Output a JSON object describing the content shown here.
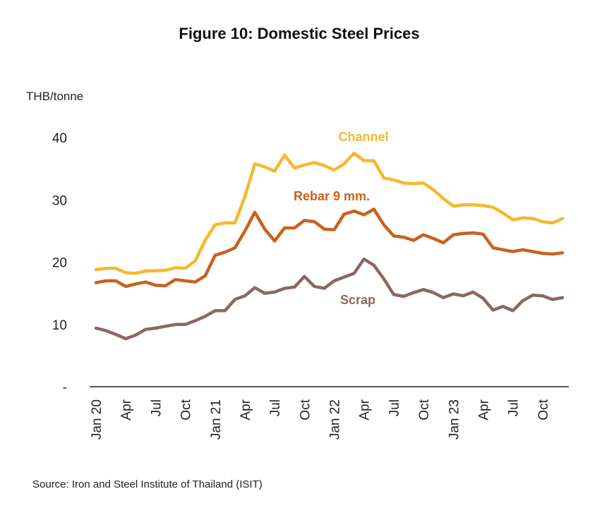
{
  "chart_data": {
    "type": "line",
    "title": "Figure 10: Domestic Steel Prices",
    "ylabel": "THB/tonne",
    "source": "Source: Iron and Steel Institute of Thailand (ISIT)",
    "ylim": [
      0,
      40
    ],
    "yticks": [
      {
        "value": 0,
        "label": "-"
      },
      {
        "value": 10,
        "label": "10"
      },
      {
        "value": 20,
        "label": "20"
      },
      {
        "value": 30,
        "label": "30"
      },
      {
        "value": 40,
        "label": "40"
      }
    ],
    "x": [
      "Jan 20",
      "Feb 20",
      "Mar 20",
      "Apr 20",
      "May 20",
      "Jun 20",
      "Jul 20",
      "Aug 20",
      "Sep 20",
      "Oct 20",
      "Nov 20",
      "Dec 20",
      "Jan 21",
      "Feb 21",
      "Mar 21",
      "Apr 21",
      "May 21",
      "Jun 21",
      "Jul 21",
      "Aug 21",
      "Sep 21",
      "Oct 21",
      "Nov 21",
      "Dec 21",
      "Jan 22",
      "Feb 22",
      "Mar 22",
      "Apr 22",
      "May 22",
      "Jun 22",
      "Jul 22",
      "Aug 22",
      "Sep 22",
      "Oct 22",
      "Nov 22",
      "Dec 22",
      "Jan 23",
      "Feb 23",
      "Mar 23",
      "Apr 23",
      "May 23",
      "Jun 23",
      "Jul 23",
      "Aug 23",
      "Sep 23",
      "Oct 23",
      "Nov 23",
      "Dec 23"
    ],
    "xticks": [
      {
        "index": 0,
        "label": "Jan 20"
      },
      {
        "index": 3,
        "label": "Apr"
      },
      {
        "index": 6,
        "label": "Jul"
      },
      {
        "index": 9,
        "label": "Oct"
      },
      {
        "index": 12,
        "label": "Jan 21"
      },
      {
        "index": 15,
        "label": "Apr"
      },
      {
        "index": 18,
        "label": "Jul"
      },
      {
        "index": 21,
        "label": "Oct"
      },
      {
        "index": 24,
        "label": "Jan 22"
      },
      {
        "index": 27,
        "label": "Apr"
      },
      {
        "index": 30,
        "label": "Jul"
      },
      {
        "index": 33,
        "label": "Oct"
      },
      {
        "index": 36,
        "label": "Jan 23"
      },
      {
        "index": 39,
        "label": "Apr"
      },
      {
        "index": 42,
        "label": "Jul"
      },
      {
        "index": 45,
        "label": "Oct"
      }
    ],
    "series": [
      {
        "name": "Channel",
        "color": "#F5B82E",
        "values": [
          18.8,
          19.0,
          19.0,
          18.3,
          18.2,
          18.6,
          18.6,
          18.7,
          19.1,
          19.0,
          20.2,
          23.5,
          26.0,
          26.3,
          26.3,
          30.5,
          35.8,
          35.3,
          34.6,
          37.2,
          35.1,
          35.6,
          36.0,
          35.5,
          34.8,
          35.8,
          37.5,
          36.3,
          36.3,
          33.5,
          33.2,
          32.7,
          32.6,
          32.7,
          31.6,
          30.2,
          29.0,
          29.2,
          29.2,
          29.1,
          28.8,
          27.9,
          26.8,
          27.1,
          27.0,
          26.5,
          26.3,
          27.0
        ]
      },
      {
        "name": "Rebar 9 mm.",
        "color": "#C8621E",
        "values": [
          16.7,
          17.0,
          17.0,
          16.1,
          16.5,
          16.8,
          16.3,
          16.2,
          17.2,
          17.0,
          16.8,
          17.8,
          21.1,
          21.6,
          22.3,
          25.0,
          28.0,
          25.3,
          23.4,
          25.5,
          25.5,
          26.7,
          26.5,
          25.3,
          25.2,
          27.7,
          28.2,
          27.6,
          28.5,
          26.0,
          24.2,
          24.0,
          23.5,
          24.4,
          23.8,
          23.1,
          24.4,
          24.6,
          24.7,
          24.5,
          22.3,
          22.0,
          21.7,
          22.0,
          21.7,
          21.4,
          21.3,
          21.5
        ]
      },
      {
        "name": "Scrap",
        "color": "#8B6862",
        "values": [
          9.4,
          9.0,
          8.4,
          7.7,
          8.3,
          9.2,
          9.4,
          9.7,
          10.0,
          10.0,
          10.6,
          11.3,
          12.2,
          12.2,
          14.0,
          14.6,
          15.9,
          15.0,
          15.2,
          15.8,
          16.0,
          17.7,
          16.1,
          15.8,
          17.0,
          17.6,
          18.2,
          20.5,
          19.5,
          17.3,
          14.8,
          14.5,
          15.1,
          15.6,
          15.1,
          14.3,
          14.9,
          14.6,
          15.2,
          14.2,
          12.3,
          12.9,
          12.2,
          13.8,
          14.7,
          14.6,
          14.0,
          14.3
        ]
      }
    ]
  }
}
